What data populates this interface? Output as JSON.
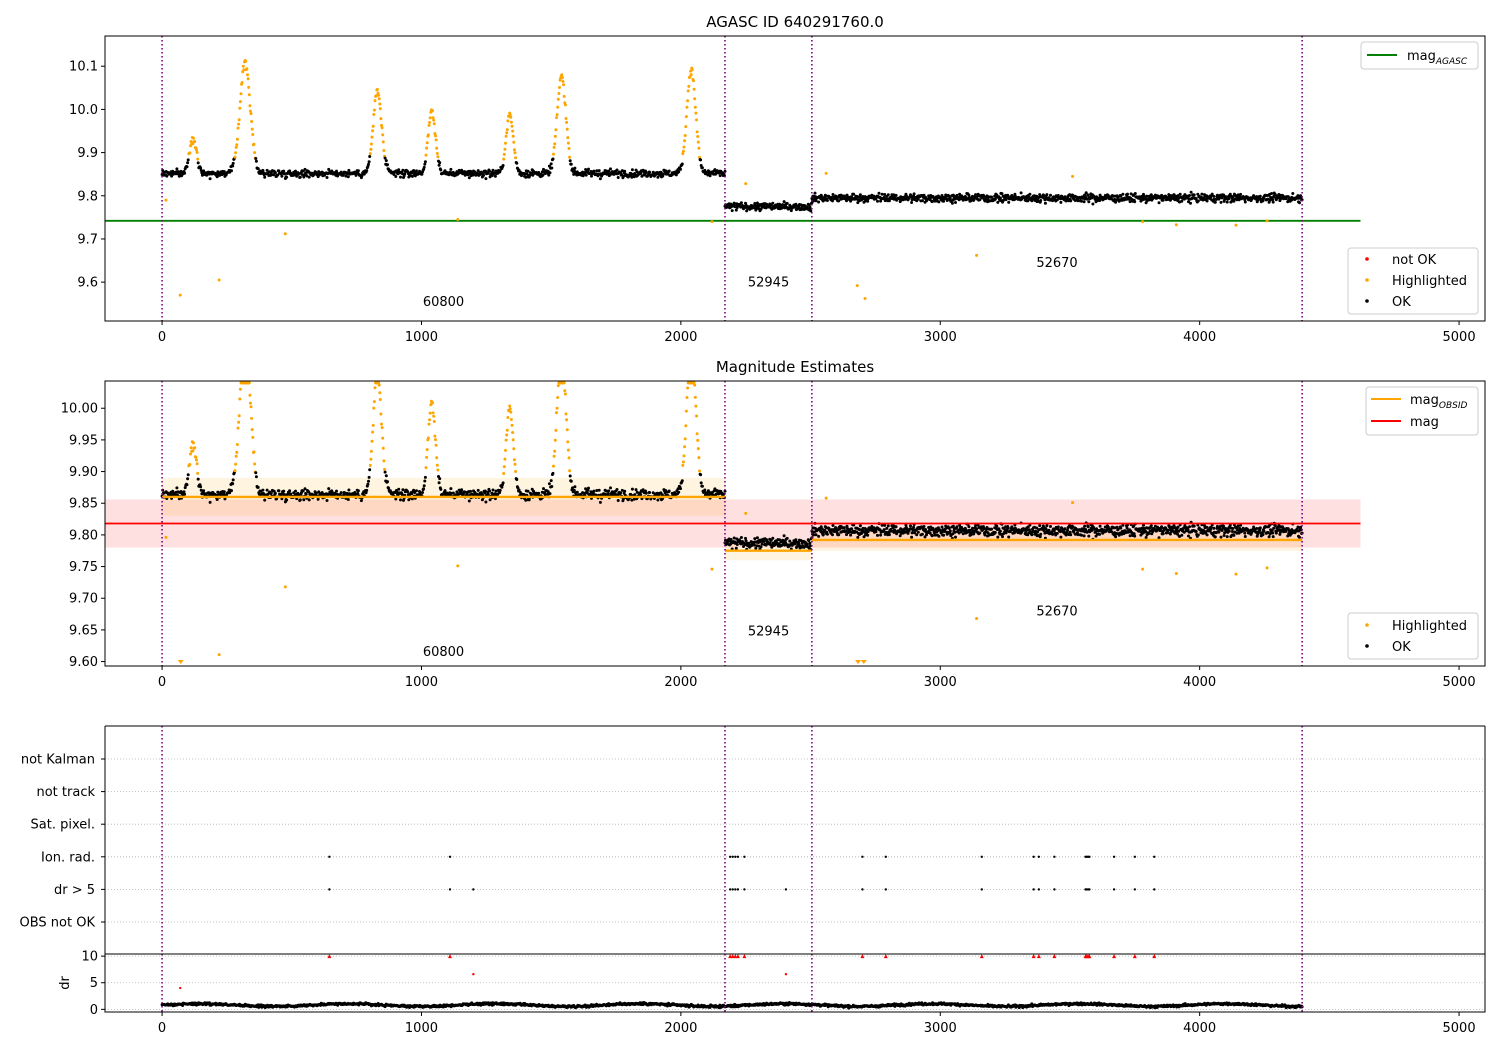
{
  "chart_data": [
    {
      "type": "scatter",
      "title": "AGASC ID 640291760.0",
      "xlabel": "",
      "ylabel": "",
      "xlim": [
        -220,
        5100
      ],
      "ylim": [
        9.51,
        10.17
      ],
      "xticks": [
        0,
        1000,
        2000,
        3000,
        4000,
        5000
      ],
      "yticks": [
        9.6,
        9.7,
        9.8,
        9.9,
        10.0,
        10.1
      ],
      "ytick_labels": [
        "9.6",
        "9.7",
        "9.8",
        "9.9",
        "10.0",
        "10.1"
      ],
      "obsid_boundaries": [
        0,
        2170,
        2505,
        4395
      ],
      "obsid_labels": [
        {
          "text": "60800",
          "x": 1085,
          "y": 9.545
        },
        {
          "text": "52945",
          "x": 2338,
          "y": 9.59
        },
        {
          "text": "52670",
          "x": 3450,
          "y": 9.635
        }
      ],
      "lines": [
        {
          "name": "mag_AGASC",
          "color": "#008000",
          "x": [
            -220,
            4620
          ],
          "y": [
            9.742,
            9.742
          ]
        }
      ],
      "segments": [
        {
          "x0": 0,
          "x1": 2170,
          "base": 9.852,
          "sd": 0.011,
          "n": 950
        },
        {
          "x0": 2170,
          "x1": 2505,
          "base": 9.775,
          "sd": 0.011,
          "n": 170
        },
        {
          "x0": 2505,
          "x1": 4395,
          "base": 9.795,
          "sd": 0.012,
          "n": 950
        }
      ],
      "flares": [
        {
          "x": 120,
          "amp": 0.08,
          "w": 14
        },
        {
          "x": 320,
          "amp": 0.255,
          "w": 20
        },
        {
          "x": 830,
          "amp": 0.19,
          "w": 16
        },
        {
          "x": 1040,
          "amp": 0.145,
          "w": 14
        },
        {
          "x": 1340,
          "amp": 0.135,
          "w": 14
        },
        {
          "x": 1540,
          "amp": 0.225,
          "w": 17
        },
        {
          "x": 2040,
          "amp": 0.24,
          "w": 17
        }
      ],
      "outliers": [
        {
          "x": 15,
          "y": 9.79
        },
        {
          "x": 70,
          "y": 9.57
        },
        {
          "x": 220,
          "y": 9.605
        },
        {
          "x": 475,
          "y": 9.712
        },
        {
          "x": 1140,
          "y": 9.745
        },
        {
          "x": 2120,
          "y": 9.74
        },
        {
          "x": 2250,
          "y": 9.828
        },
        {
          "x": 2680,
          "y": 9.592
        },
        {
          "x": 2710,
          "y": 9.562
        },
        {
          "x": 2560,
          "y": 9.852
        },
        {
          "x": 3140,
          "y": 9.662
        },
        {
          "x": 3510,
          "y": 9.845
        },
        {
          "x": 3780,
          "y": 9.74
        },
        {
          "x": 3910,
          "y": 9.733
        },
        {
          "x": 4140,
          "y": 9.732
        },
        {
          "x": 4260,
          "y": 9.742
        }
      ],
      "legend_upper": {
        "position": "top-right",
        "entries": [
          {
            "label": "mag",
            "subscript": "AGASC",
            "color": "#008000"
          }
        ]
      },
      "legend_lower": {
        "position": "bottom-right",
        "entries": [
          {
            "label": "not OK",
            "color": "#ff0000"
          },
          {
            "label": "Highlighted",
            "color": "#ffa500"
          },
          {
            "label": "OK",
            "color": "#000000"
          }
        ]
      }
    },
    {
      "type": "scatter",
      "title": "Magnitude Estimates",
      "xlabel": "",
      "ylabel": "",
      "xlim": [
        -220,
        5100
      ],
      "ylim": [
        9.593,
        10.043
      ],
      "xticks": [
        0,
        1000,
        2000,
        3000,
        4000,
        5000
      ],
      "yticks": [
        9.6,
        9.65,
        9.7,
        9.75,
        9.8,
        9.85,
        9.9,
        9.95,
        10.0
      ],
      "ytick_labels": [
        "9.60",
        "9.65",
        "9.70",
        "9.75",
        "9.80",
        "9.85",
        "9.90",
        "9.95",
        "10.00"
      ],
      "obsid_boundaries": [
        0,
        2170,
        2505,
        4395
      ],
      "obsid_labels": [
        {
          "text": "60800",
          "x": 1085,
          "y": 9.609
        },
        {
          "text": "52945",
          "x": 2338,
          "y": 9.641
        },
        {
          "text": "52670",
          "x": 3450,
          "y": 9.673
        }
      ],
      "mag": {
        "name": "mag",
        "color": "#ff0000",
        "value": 9.818,
        "band": [
          9.78,
          9.856
        ],
        "x": [
          -220,
          4620
        ]
      },
      "mag_obsid": [
        {
          "x0": 0,
          "x1": 2170,
          "value": 9.86,
          "band": [
            9.83,
            9.89
          ]
        },
        {
          "x0": 2170,
          "x1": 2505,
          "value": 9.775,
          "band": [
            9.76,
            9.79
          ]
        },
        {
          "x0": 2505,
          "x1": 4395,
          "value": 9.792,
          "band": [
            9.775,
            9.808
          ]
        }
      ],
      "clipped_markers": [
        {
          "x": 72
        },
        {
          "x": 2683
        },
        {
          "x": 2705
        }
      ],
      "legend_upper": {
        "position": "top-right",
        "entries": [
          {
            "label": "mag",
            "subscript": "OBSID",
            "color": "#ffa500"
          },
          {
            "label": "mag",
            "color": "#ff0000"
          }
        ]
      },
      "legend_lower": {
        "position": "bottom-right",
        "entries": [
          {
            "label": "Highlighted",
            "color": "#ffa500"
          },
          {
            "label": "OK",
            "color": "#000000"
          }
        ]
      }
    },
    {
      "type": "scatter",
      "title": "",
      "xlim": [
        -220,
        5100
      ],
      "categories": [
        "not Kalman",
        "not track",
        "Sat. pixel.",
        "Ion. rad.",
        "dr > 5",
        "OBS not OK"
      ],
      "flags": {
        "Ion. rad.": [
          645,
          1110,
          2190,
          2200,
          2210,
          2220,
          2245,
          2700,
          2790,
          3160,
          3360,
          3380,
          3440,
          3560,
          3565,
          3570,
          3575,
          3670,
          3750,
          3825
        ],
        "dr > 5": [
          645,
          1110,
          1200,
          2190,
          2200,
          2210,
          2220,
          2245,
          2405,
          2700,
          2790,
          3160,
          3360,
          3380,
          3440,
          3560,
          3565,
          3570,
          3575,
          3670,
          3750,
          3825
        ]
      },
      "obsid_boundaries": [
        0,
        2170,
        2505,
        4395
      ]
    },
    {
      "type": "scatter",
      "title": "",
      "ylabel": "dr",
      "xlim": [
        -220,
        5100
      ],
      "ylim": [
        -0.5,
        10.4
      ],
      "xticks": [
        0,
        1000,
        2000,
        3000,
        4000,
        5000
      ],
      "yticks": [
        0,
        5,
        10
      ],
      "ytick_labels": [
        "0",
        "5",
        "10"
      ],
      "clipped_markers": [
        645,
        1110,
        2190,
        2200,
        2210,
        2220,
        2245,
        2700,
        2790,
        3160,
        3360,
        3380,
        3440,
        3560,
        3565,
        3570,
        3575,
        3670,
        3750,
        3825
      ],
      "red_points": [
        {
          "x": 70,
          "y": 4.0
        },
        {
          "x": 1200,
          "y": 6.6
        },
        {
          "x": 2405,
          "y": 6.6
        }
      ],
      "baseline": {
        "x0": 0,
        "x1": 4395,
        "mean": 0.8,
        "sd": 0.25
      },
      "obsid_boundaries": [
        0,
        2170,
        2505,
        4395
      ]
    }
  ],
  "colors": {
    "ok": "#000000",
    "highlighted": "#ffa500",
    "not_ok": "#ff0000",
    "mag_agasc": "#008000",
    "mag": "#ff0000",
    "mag_obsid": "#ffa500",
    "obsid_boundary": "#800080",
    "grid": "#b0b0b0"
  }
}
